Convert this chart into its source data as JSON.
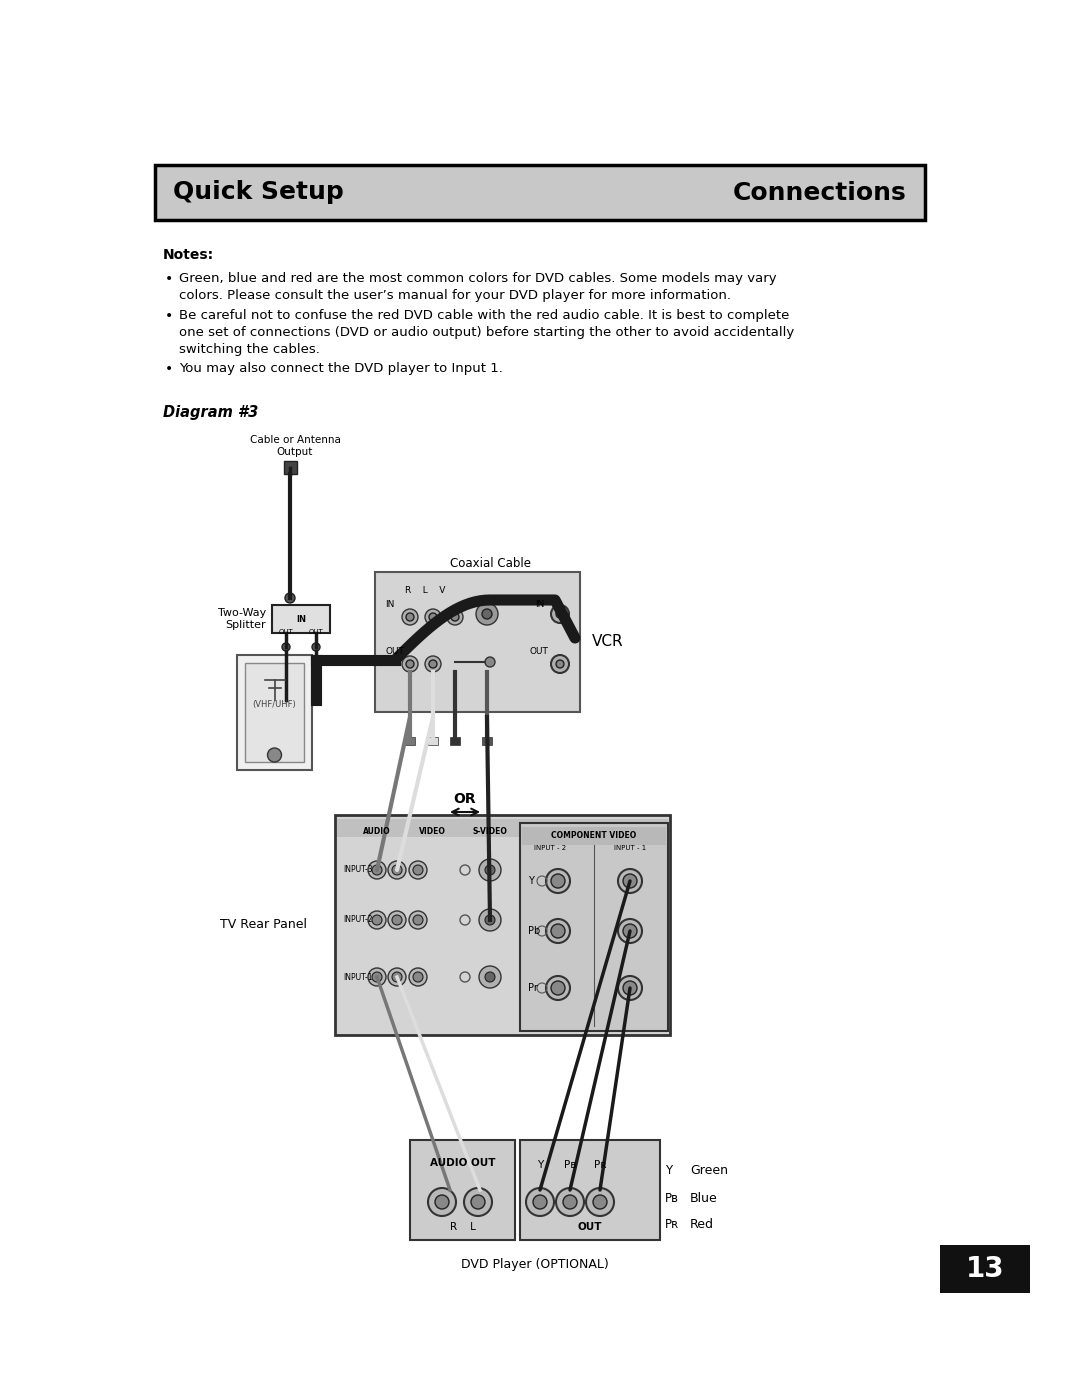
{
  "title_left": "Quick Setup",
  "title_right": "Connections",
  "title_bg": "#c8c8c8",
  "title_border": "#000000",
  "notes_header": "Notes:",
  "bullet1_line1": "Green, blue and red are the most common colors for DVD cables. Some models may vary",
  "bullet1_line2": "colors. Please consult the user’s manual for your DVD player for more information.",
  "bullet2_line1": "Be careful not to confuse the red DVD cable with the red audio cable. It is best to complete",
  "bullet2_line2": "one set of connections (DVD or audio output) before starting the other to avoid accidentally",
  "bullet2_line3": "switching the cables.",
  "bullet3": "You may also connect the DVD player to Input 1.",
  "diagram_label": "Diagram #3",
  "label_cable_antenna": "Cable or Antenna\nOutput",
  "label_two_way_line1": "Two-Way",
  "label_two_way_line2": "Splitter",
  "label_coaxial": "Coaxial Cable",
  "label_vcr": "VCR",
  "label_tv_rear": "TV Rear Panel",
  "label_or": "OR",
  "label_audio_out": "AUDIO OUT",
  "label_r_l": "R    L",
  "label_out": "OUT",
  "label_green": "Green",
  "label_blue": "Blue",
  "label_red": "Red",
  "label_dvd": "DVD Player (OPTIONAL)",
  "label_y": "Y",
  "label_pb": "P",
  "label_pb_sub": "B",
  "label_pr": "P",
  "label_pr_sub": "R",
  "label_component_video": "COMPONENT VIDEO",
  "label_input2": "INPUT - 2",
  "label_input1": "INPUT - 1",
  "page_num": "13",
  "bg_color": "#ffffff",
  "text_color": "#000000",
  "dark_gray": "#333333",
  "med_gray": "#888888",
  "light_gray": "#d8d8d8",
  "jack_gray": "#aaaaaa",
  "cable_dark": "#1a1a1a",
  "cable_mid": "#666666"
}
